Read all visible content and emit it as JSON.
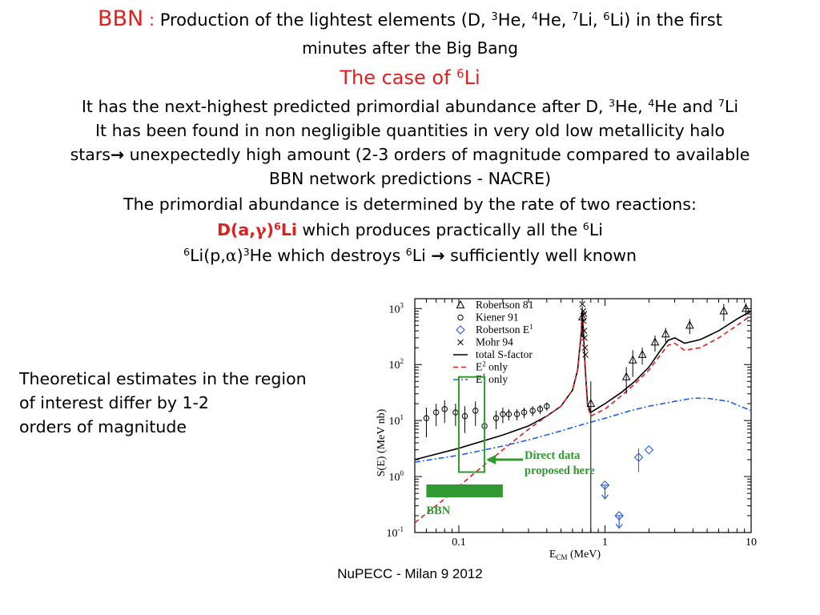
{
  "title": {
    "bbn": "BBN",
    "colon": ":",
    "line1": [
      "Production of the lightest elements (D, ",
      "3",
      "He, ",
      "4",
      "He, ",
      "7",
      "Li, ",
      "6",
      "Li) in the first"
    ],
    "line2": "minutes after the Big Bang",
    "subtitle": [
      "The case of ",
      "6",
      "Li"
    ]
  },
  "body": {
    "p1": [
      "It has the next-highest predicted primordial abundance after D, ",
      "3",
      "He, ",
      "4",
      "He and ",
      "7",
      "Li"
    ],
    "p2": "It has been found in non negligible quantities in very old low metallicity halo",
    "p3a": "stars",
    "p3arrow": "→",
    "p3b": " unexpectedly high amount (2-3 orders of magnitude compared to available",
    "p4": "BBN network predictions - NACRE)",
    "p5": "The primordial abundance is determined by the rate of two reactions:",
    "p6_reaction": [
      "D(a,",
      "γ",
      ")",
      "6",
      "Li"
    ],
    "p6_text": [
      " which produces practically all the ",
      "6",
      "Li"
    ],
    "p7": [
      "6",
      "Li(p,",
      "α",
      ")",
      "3",
      "He which destroys ",
      "6",
      "Li ",
      "→",
      " sufficiently well known"
    ]
  },
  "side_note": [
    "Theoretical estimates in the region",
    "of interest differ by 1-2",
    "orders of magnitude"
  ],
  "footer": "NuPECC - Milan 9 2012",
  "colors": {
    "accent_red": "#e02020",
    "green": "#2f9a2f",
    "blue": "#1f5ee8"
  },
  "chart_data": {
    "type": "scatter",
    "xscale": "log",
    "yscale": "log",
    "xlim": [
      0.05,
      10
    ],
    "ylim": [
      0.1,
      1500
    ],
    "xlabel": [
      "E",
      "CM",
      " (MeV)"
    ],
    "ylabel": "S(E) (MeV nb)",
    "xticks": [
      {
        "v": 0.1,
        "label": "0.1"
      },
      {
        "v": 1,
        "label": "1"
      },
      {
        "v": 10,
        "label": "10"
      }
    ],
    "yticks": [
      {
        "v": 0.1,
        "mant": "10",
        "exp": "-1"
      },
      {
        "v": 1,
        "mant": "10",
        "exp": "0"
      },
      {
        "v": 10,
        "mant": "10",
        "exp": "1"
      },
      {
        "v": 100,
        "mant": "10",
        "exp": "2"
      },
      {
        "v": 1000,
        "mant": "10",
        "exp": "3"
      }
    ],
    "legend_position": "top",
    "legend": [
      {
        "label": "Robertson 81",
        "marker": "triangle"
      },
      {
        "label": "Kiener 91",
        "marker": "circle"
      },
      {
        "label": [
          "Robertson E",
          "1"
        ],
        "marker": "diamond"
      },
      {
        "label": "Mohr 94",
        "marker": "cross"
      },
      {
        "label": "total S-factor",
        "line": "solid"
      },
      {
        "label": [
          "E",
          "2",
          " only"
        ],
        "line": "dashed"
      },
      {
        "label": [
          "E",
          "1",
          " only"
        ],
        "line": "dashdot"
      }
    ],
    "series": [
      {
        "name": "Robertson 81",
        "kind": "points",
        "marker": "triangle",
        "color": "#000000",
        "points": [
          [
            0.7,
            700,
            400
          ],
          [
            0.8,
            20,
            30
          ],
          [
            1.4,
            60,
            30
          ],
          [
            1.55,
            120,
            60
          ],
          [
            1.8,
            150,
            50
          ],
          [
            2.2,
            250,
            80
          ],
          [
            2.6,
            350,
            100
          ],
          [
            3.8,
            500,
            150
          ],
          [
            6.5,
            900,
            300
          ],
          [
            9.2,
            1000,
            250
          ]
        ]
      },
      {
        "name": "Kiener 91",
        "kind": "points",
        "marker": "circle",
        "color": "#000000",
        "points": [
          [
            0.06,
            11,
            6
          ],
          [
            0.07,
            14,
            6
          ],
          [
            0.08,
            16,
            7
          ],
          [
            0.095,
            14,
            6
          ],
          [
            0.11,
            12,
            6
          ],
          [
            0.13,
            15,
            7
          ],
          [
            0.15,
            8,
            4
          ],
          [
            0.18,
            11,
            4
          ],
          [
            0.2,
            13,
            4
          ],
          [
            0.22,
            13,
            3
          ],
          [
            0.25,
            13,
            3
          ],
          [
            0.28,
            14,
            3
          ],
          [
            0.32,
            15,
            3
          ],
          [
            0.36,
            16,
            3
          ],
          [
            0.4,
            18,
            3
          ]
        ]
      },
      {
        "name": "Robertson E1",
        "kind": "points",
        "marker": "diamond",
        "color": "#1f5ee8",
        "points": [
          [
            1.7,
            2.2,
            1.0
          ],
          [
            2.0,
            3.0,
            0
          ],
          [
            1.0,
            0.7,
            -0.3
          ],
          [
            1.25,
            0.2,
            -0.08
          ]
        ]
      },
      {
        "name": "Mohr 94",
        "kind": "points",
        "marker": "cross",
        "color": "#000000",
        "points": [
          [
            0.7,
            1200,
            0
          ],
          [
            0.71,
            900,
            0
          ],
          [
            0.715,
            600,
            0
          ],
          [
            0.72,
            400,
            0
          ],
          [
            0.725,
            300,
            0
          ],
          [
            0.73,
            200,
            0
          ],
          [
            0.735,
            150,
            0
          ],
          [
            0.72,
            800,
            0
          ]
        ]
      },
      {
        "name": "total S-factor",
        "kind": "line",
        "style": "solid",
        "color": "#000000",
        "points": [
          [
            0.05,
            2.0
          ],
          [
            0.1,
            3.2
          ],
          [
            0.2,
            5.5
          ],
          [
            0.3,
            8
          ],
          [
            0.4,
            12
          ],
          [
            0.5,
            18
          ],
          [
            0.6,
            35
          ],
          [
            0.65,
            80
          ],
          [
            0.69,
            400
          ],
          [
            0.7,
            900
          ],
          [
            0.71,
            500
          ],
          [
            0.73,
            100
          ],
          [
            0.76,
            20
          ],
          [
            0.8,
            14
          ],
          [
            1.0,
            20
          ],
          [
            1.3,
            32
          ],
          [
            1.6,
            50
          ],
          [
            2.0,
            90
          ],
          [
            2.4,
            180
          ],
          [
            2.7,
            270
          ],
          [
            3.0,
            300
          ],
          [
            3.5,
            240
          ],
          [
            4.5,
            280
          ],
          [
            6,
            400
          ],
          [
            8,
            650
          ],
          [
            10,
            900
          ]
        ]
      },
      {
        "name": "E2 only",
        "kind": "line",
        "style": "dashed",
        "color": "#e02020",
        "points": [
          [
            0.05,
            0.15
          ],
          [
            0.08,
            0.4
          ],
          [
            0.12,
            1.0
          ],
          [
            0.2,
            3.0
          ],
          [
            0.3,
            7
          ],
          [
            0.4,
            12
          ],
          [
            0.5,
            18
          ],
          [
            0.6,
            35
          ],
          [
            0.65,
            80
          ],
          [
            0.69,
            400
          ],
          [
            0.7,
            900
          ],
          [
            0.71,
            500
          ],
          [
            0.73,
            100
          ],
          [
            0.76,
            18
          ],
          [
            0.8,
            12
          ],
          [
            1.0,
            16
          ],
          [
            1.3,
            28
          ],
          [
            1.6,
            45
          ],
          [
            2.0,
            80
          ],
          [
            2.4,
            150
          ],
          [
            2.7,
            220
          ],
          [
            3.0,
            240
          ],
          [
            3.5,
            180
          ],
          [
            4.5,
            200
          ],
          [
            6,
            300
          ],
          [
            8,
            500
          ],
          [
            10,
            750
          ]
        ]
      },
      {
        "name": "E1 only",
        "kind": "line",
        "style": "dashdot",
        "color": "#1f5ee8",
        "points": [
          [
            0.05,
            1.8
          ],
          [
            0.1,
            2.4
          ],
          [
            0.2,
            3.5
          ],
          [
            0.3,
            4.5
          ],
          [
            0.5,
            6.5
          ],
          [
            0.7,
            8.5
          ],
          [
            1.0,
            11
          ],
          [
            1.5,
            15
          ],
          [
            2,
            18
          ],
          [
            3,
            22
          ],
          [
            4,
            25
          ],
          [
            5,
            25
          ],
          [
            7,
            22
          ],
          [
            10,
            15
          ]
        ]
      }
    ],
    "annotations": {
      "arrow_text": [
        "Direct data",
        "proposed here"
      ],
      "bbn_label": "BBN",
      "bbn_range": [
        0.06,
        0.2
      ],
      "box_range": {
        "x": [
          0.1,
          0.15
        ],
        "y": [
          1.2,
          60
        ]
      }
    }
  }
}
